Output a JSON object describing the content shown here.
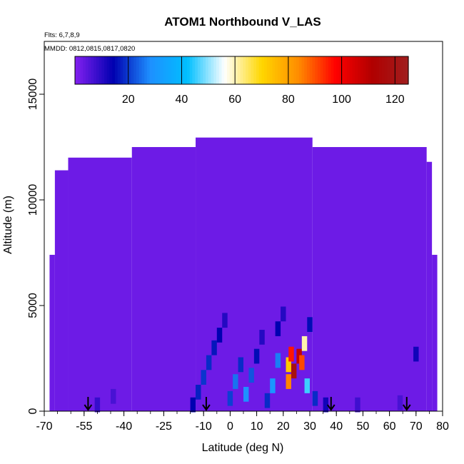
{
  "chart_data": {
    "type": "heatmap",
    "title": "ATOM1 Northbound V_LAS",
    "notes": [
      "Flts: 6,7,8,9",
      "MMDD: 0812,0815,0817,0820"
    ],
    "xlabel": "Latitude (deg N)",
    "ylabel": "Altitude (m)",
    "xlim": [
      -70,
      80
    ],
    "ylim": [
      0,
      17500
    ],
    "x_ticks": [
      -70,
      -55,
      -40,
      -25,
      -10,
      0,
      10,
      20,
      30,
      40,
      50,
      60,
      70,
      80
    ],
    "y_ticks": [
      0,
      5000,
      10000,
      15000
    ],
    "colorbar": {
      "range": [
        0,
        125
      ],
      "ticks": [
        20,
        40,
        60,
        80,
        100,
        120
      ],
      "colors": [
        "#7f1fef",
        "#0000b0",
        "#1e90ff",
        "#00bfff",
        "#ffffff",
        "#ffd700",
        "#ff8c00",
        "#ff0000",
        "#b00000",
        "#a02020"
      ]
    },
    "background_value": 2,
    "envelope": [
      {
        "lat_min": -68,
        "lat_max": -66,
        "alt_max": 7400
      },
      {
        "lat_min": -66,
        "lat_max": -61,
        "alt_max": 11400
      },
      {
        "lat_min": -61,
        "lat_max": -37,
        "alt_max": 12000
      },
      {
        "lat_min": -37,
        "lat_max": -13,
        "alt_max": 12500
      },
      {
        "lat_min": -13,
        "lat_max": 31,
        "alt_max": 12950
      },
      {
        "lat_min": 31,
        "lat_max": 74,
        "alt_max": 12500
      },
      {
        "lat_min": 74,
        "lat_max": 76,
        "alt_max": 11800
      },
      {
        "lat_min": 76,
        "lat_max": 78,
        "alt_max": 7400
      }
    ],
    "cells": [
      {
        "lat": -14,
        "alt": 300,
        "value": 14
      },
      {
        "lat": -12,
        "alt": 900,
        "value": 17
      },
      {
        "lat": -10,
        "alt": 1600,
        "value": 19
      },
      {
        "lat": -8,
        "alt": 2300,
        "value": 18
      },
      {
        "lat": -6,
        "alt": 3000,
        "value": 16
      },
      {
        "lat": -4,
        "alt": 3600,
        "value": 14
      },
      {
        "lat": -2,
        "alt": 4300,
        "value": 10
      },
      {
        "lat": 0,
        "alt": 600,
        "value": 20
      },
      {
        "lat": 2,
        "alt": 1400,
        "value": 25
      },
      {
        "lat": 4,
        "alt": 2200,
        "value": 18
      },
      {
        "lat": 6,
        "alt": 800,
        "value": 28
      },
      {
        "lat": 8,
        "alt": 1700,
        "value": 22
      },
      {
        "lat": 10,
        "alt": 2600,
        "value": 15
      },
      {
        "lat": 12,
        "alt": 3500,
        "value": 10
      },
      {
        "lat": 14,
        "alt": 500,
        "value": 18
      },
      {
        "lat": 16,
        "alt": 1200,
        "value": 30
      },
      {
        "lat": 18,
        "alt": 2400,
        "value": 26
      },
      {
        "lat": 18,
        "alt": 3900,
        "value": 14
      },
      {
        "lat": 20,
        "alt": 4600,
        "value": 10
      },
      {
        "lat": 22,
        "alt": 2200,
        "value": 72
      },
      {
        "lat": 22,
        "alt": 1400,
        "value": 84
      },
      {
        "lat": 23,
        "alt": 2700,
        "value": 95
      },
      {
        "lat": 24,
        "alt": 1900,
        "value": 118
      },
      {
        "lat": 26,
        "alt": 2600,
        "value": 108
      },
      {
        "lat": 27,
        "alt": 2300,
        "value": 90
      },
      {
        "lat": 28,
        "alt": 3200,
        "value": 60
      },
      {
        "lat": 29,
        "alt": 1200,
        "value": 45
      },
      {
        "lat": 30,
        "alt": 4100,
        "value": 15
      },
      {
        "lat": 32,
        "alt": 600,
        "value": 18
      },
      {
        "lat": 36,
        "alt": 300,
        "value": 12
      },
      {
        "lat": -50,
        "alt": 300,
        "value": 8
      },
      {
        "lat": -44,
        "alt": 700,
        "value": 6
      },
      {
        "lat": 48,
        "alt": 300,
        "value": 7
      },
      {
        "lat": 64,
        "alt": 400,
        "value": 6
      },
      {
        "lat": 70,
        "alt": 2700,
        "value": 12
      }
    ],
    "markers": [
      {
        "lat": -53.5,
        "alt": 0
      },
      {
        "lat": -9,
        "alt": 0
      },
      {
        "lat": 38,
        "alt": 0
      },
      {
        "lat": 66.5,
        "alt": 0
      }
    ]
  }
}
